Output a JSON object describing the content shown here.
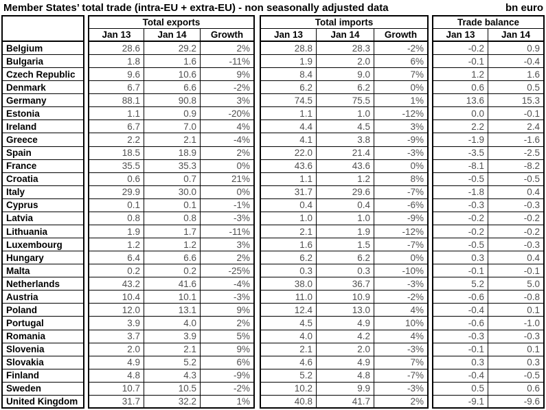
{
  "header": {
    "title": "Member States’ total trade (intra-EU + extra-EU) - non seasonally adjusted data",
    "unit": "bn euro"
  },
  "colors": {
    "border": "#000000",
    "heading_text": "#000000",
    "number_text": "#4f4f4f",
    "background": "#ffffff"
  },
  "table": {
    "groups": [
      {
        "label": "Total exports",
        "columns": [
          "Jan 13",
          "Jan 14",
          "Growth"
        ]
      },
      {
        "label": "Total imports",
        "columns": [
          "Jan 13",
          "Jan 14",
          "Growth"
        ]
      },
      {
        "label": "Trade balance",
        "columns": [
          "Jan 13",
          "Jan 14"
        ]
      }
    ],
    "rows": [
      {
        "country": "Belgium",
        "exports": [
          "28.6",
          "29.2",
          "2%"
        ],
        "imports": [
          "28.8",
          "28.3",
          "-2%"
        ],
        "balance": [
          "-0.2",
          "0.9"
        ]
      },
      {
        "country": "Bulgaria",
        "exports": [
          "1.8",
          "1.6",
          "-11%"
        ],
        "imports": [
          "1.9",
          "2.0",
          "6%"
        ],
        "balance": [
          "-0.1",
          "-0.4"
        ]
      },
      {
        "country": "Czech Republic",
        "exports": [
          "9.6",
          "10.6",
          "9%"
        ],
        "imports": [
          "8.4",
          "9.0",
          "7%"
        ],
        "balance": [
          "1.2",
          "1.6"
        ]
      },
      {
        "country": "Denmark",
        "exports": [
          "6.7",
          "6.6",
          "-2%"
        ],
        "imports": [
          "6.2",
          "6.2",
          "0%"
        ],
        "balance": [
          "0.6",
          "0.5"
        ]
      },
      {
        "country": "Germany",
        "exports": [
          "88.1",
          "90.8",
          "3%"
        ],
        "imports": [
          "74.5",
          "75.5",
          "1%"
        ],
        "balance": [
          "13.6",
          "15.3"
        ]
      },
      {
        "country": "Estonia",
        "exports": [
          "1.1",
          "0.9",
          "-20%"
        ],
        "imports": [
          "1.1",
          "1.0",
          "-12%"
        ],
        "balance": [
          "0.0",
          "-0.1"
        ]
      },
      {
        "country": "Ireland",
        "exports": [
          "6.7",
          "7.0",
          "4%"
        ],
        "imports": [
          "4.4",
          "4.5",
          "3%"
        ],
        "balance": [
          "2.2",
          "2.4"
        ]
      },
      {
        "country": "Greece",
        "exports": [
          "2.2",
          "2.1",
          "-4%"
        ],
        "imports": [
          "4.1",
          "3.8",
          "-9%"
        ],
        "balance": [
          "-1.9",
          "-1.6"
        ]
      },
      {
        "country": "Spain",
        "exports": [
          "18.5",
          "18.9",
          "2%"
        ],
        "imports": [
          "22.0",
          "21.4",
          "-3%"
        ],
        "balance": [
          "-3.5",
          "-2.5"
        ]
      },
      {
        "country": "France",
        "exports": [
          "35.5",
          "35.3",
          "0%"
        ],
        "imports": [
          "43.6",
          "43.6",
          "0%"
        ],
        "balance": [
          "-8.1",
          "-8.2"
        ]
      },
      {
        "country": "Croatia",
        "exports": [
          "0.6",
          "0.7",
          "21%"
        ],
        "imports": [
          "1.1",
          "1.2",
          "8%"
        ],
        "balance": [
          "-0.5",
          "-0.5"
        ]
      },
      {
        "country": "Italy",
        "exports": [
          "29.9",
          "30.0",
          "0%"
        ],
        "imports": [
          "31.7",
          "29.6",
          "-7%"
        ],
        "balance": [
          "-1.8",
          "0.4"
        ]
      },
      {
        "country": "Cyprus",
        "exports": [
          "0.1",
          "0.1",
          "-1%"
        ],
        "imports": [
          "0.4",
          "0.4",
          "-6%"
        ],
        "balance": [
          "-0.3",
          "-0.3"
        ]
      },
      {
        "country": "Latvia",
        "exports": [
          "0.8",
          "0.8",
          "-3%"
        ],
        "imports": [
          "1.0",
          "1.0",
          "-9%"
        ],
        "balance": [
          "-0.2",
          "-0.2"
        ]
      },
      {
        "country": "Lithuania",
        "exports": [
          "1.9",
          "1.7",
          "-11%"
        ],
        "imports": [
          "2.1",
          "1.9",
          "-12%"
        ],
        "balance": [
          "-0.2",
          "-0.2"
        ]
      },
      {
        "country": "Luxembourg",
        "exports": [
          "1.2",
          "1.2",
          "3%"
        ],
        "imports": [
          "1.6",
          "1.5",
          "-7%"
        ],
        "balance": [
          "-0.5",
          "-0.3"
        ]
      },
      {
        "country": "Hungary",
        "exports": [
          "6.4",
          "6.6",
          "2%"
        ],
        "imports": [
          "6.2",
          "6.2",
          "0%"
        ],
        "balance": [
          "0.3",
          "0.4"
        ]
      },
      {
        "country": "Malta",
        "exports": [
          "0.2",
          "0.2",
          "-25%"
        ],
        "imports": [
          "0.3",
          "0.3",
          "-10%"
        ],
        "balance": [
          "-0.1",
          "-0.1"
        ]
      },
      {
        "country": "Netherlands",
        "exports": [
          "43.2",
          "41.6",
          "-4%"
        ],
        "imports": [
          "38.0",
          "36.7",
          "-3%"
        ],
        "balance": [
          "5.2",
          "5.0"
        ]
      },
      {
        "country": "Austria",
        "exports": [
          "10.4",
          "10.1",
          "-3%"
        ],
        "imports": [
          "11.0",
          "10.9",
          "-2%"
        ],
        "balance": [
          "-0.6",
          "-0.8"
        ]
      },
      {
        "country": "Poland",
        "exports": [
          "12.0",
          "13.1",
          "9%"
        ],
        "imports": [
          "12.4",
          "13.0",
          "4%"
        ],
        "balance": [
          "-0.4",
          "0.1"
        ]
      },
      {
        "country": "Portugal",
        "exports": [
          "3.9",
          "4.0",
          "2%"
        ],
        "imports": [
          "4.5",
          "4.9",
          "10%"
        ],
        "balance": [
          "-0.6",
          "-1.0"
        ]
      },
      {
        "country": "Romania",
        "exports": [
          "3.7",
          "3.9",
          "5%"
        ],
        "imports": [
          "4.0",
          "4.2",
          "4%"
        ],
        "balance": [
          "-0.3",
          "-0.3"
        ]
      },
      {
        "country": "Slovenia",
        "exports": [
          "2.0",
          "2.1",
          "9%"
        ],
        "imports": [
          "2.1",
          "2.0",
          "-3%"
        ],
        "balance": [
          "-0.1",
          "0.1"
        ]
      },
      {
        "country": "Slovakia",
        "exports": [
          "4.9",
          "5.2",
          "6%"
        ],
        "imports": [
          "4.6",
          "4.9",
          "7%"
        ],
        "balance": [
          "0.3",
          "0.3"
        ]
      },
      {
        "country": "Finland",
        "exports": [
          "4.8",
          "4.3",
          "-9%"
        ],
        "imports": [
          "5.2",
          "4.8",
          "-7%"
        ],
        "balance": [
          "-0.4",
          "-0.5"
        ]
      },
      {
        "country": "Sweden",
        "exports": [
          "10.7",
          "10.5",
          "-2%"
        ],
        "imports": [
          "10.2",
          "9.9",
          "-3%"
        ],
        "balance": [
          "0.5",
          "0.6"
        ]
      },
      {
        "country": "United Kingdom",
        "exports": [
          "31.7",
          "32.2",
          "1%"
        ],
        "imports": [
          "40.8",
          "41.7",
          "2%"
        ],
        "balance": [
          "-9.1",
          "-9.6"
        ]
      }
    ]
  }
}
